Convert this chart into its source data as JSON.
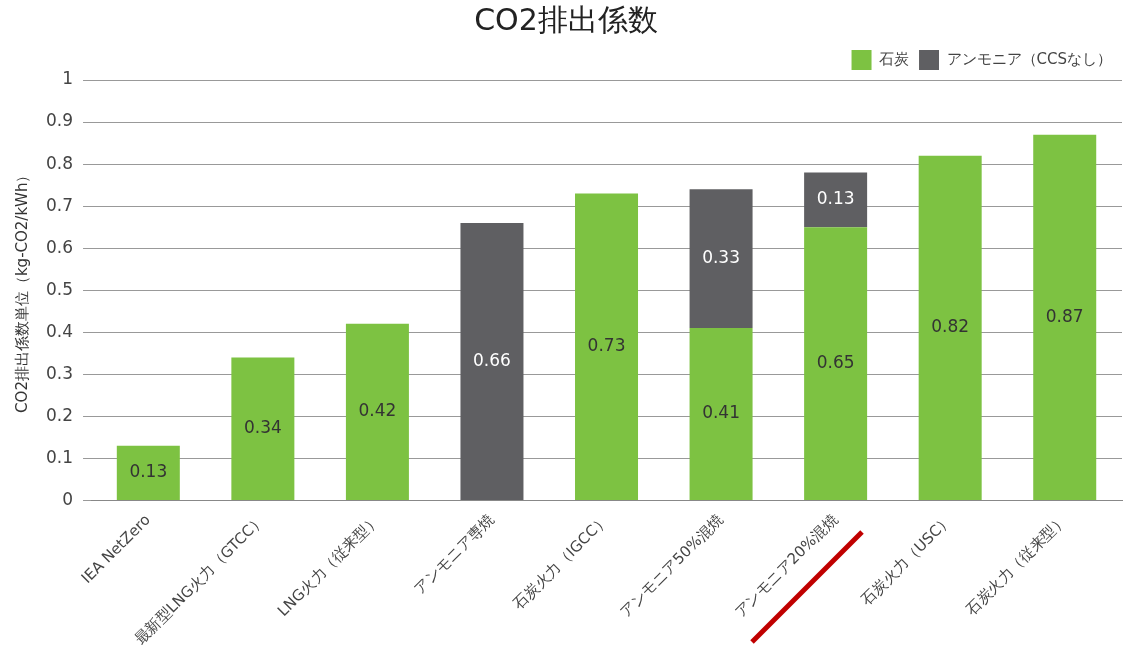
{
  "chart_data": {
    "type": "bar",
    "title": "CO2排出係数",
    "ylabel": "CO2排出係数単位（kg-CO2/kWh）",
    "categories": [
      "IEA NetZero",
      "最新型LNG火力（GTCC）",
      "LNG火力（従来型）",
      "アンモニア専焼",
      "石炭火力（IGCC）",
      "アンモニア50%混焼",
      "アンモニア20%混焼",
      "石炭火力（USC）",
      "石炭火力（従来型）"
    ],
    "series": [
      {
        "name": "石炭",
        "color": "#7dc242",
        "values": [
          0.13,
          0.34,
          0.42,
          null,
          0.73,
          0.41,
          0.65,
          0.82,
          0.87
        ]
      },
      {
        "name": "アンモニア（CCSなし）",
        "color": "#5f5f62",
        "values": [
          null,
          null,
          null,
          0.66,
          null,
          0.33,
          0.13,
          null,
          null
        ]
      }
    ],
    "stacked": true,
    "ylim": [
      0,
      1
    ],
    "yticks": [
      0,
      0.1,
      0.2,
      0.3,
      0.4,
      0.5,
      0.6,
      0.7,
      0.8,
      0.9,
      1
    ],
    "grid": "y",
    "legend": "top right",
    "data_labels": true
  }
}
